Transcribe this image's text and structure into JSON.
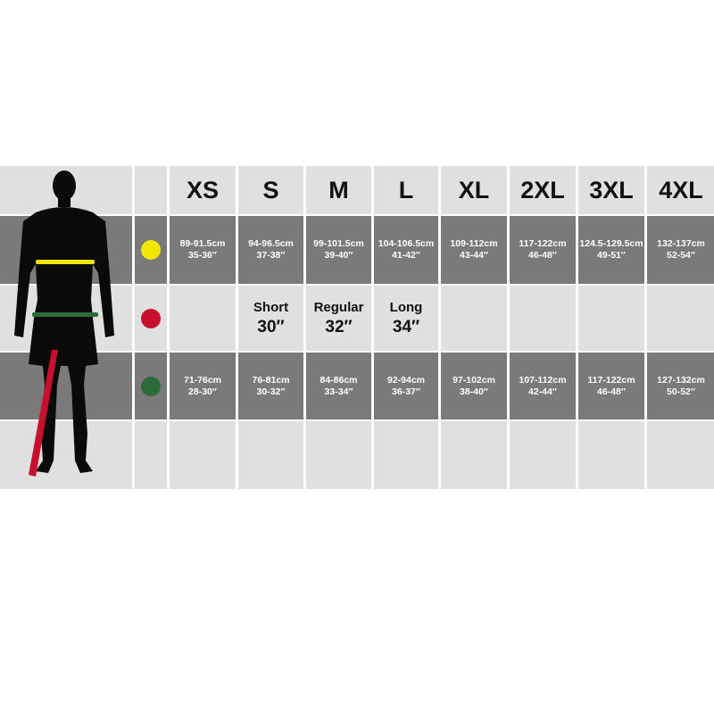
{
  "sizes": [
    "XS",
    "S",
    "M",
    "L",
    "XL",
    "2XL",
    "3XL",
    "4XL"
  ],
  "markers": {
    "chest_color": "#f2e600",
    "inside_leg_color": "#c8102e",
    "waist_color": "#2e6b3a"
  },
  "chest": [
    {
      "cm": "89-91.5cm",
      "in": "35-36″"
    },
    {
      "cm": "94-96.5cm",
      "in": "37-38″"
    },
    {
      "cm": "99-101.5cm",
      "in": "39-40″"
    },
    {
      "cm": "104-106.5cm",
      "in": "41-42″"
    },
    {
      "cm": "109-112cm",
      "in": "43-44″"
    },
    {
      "cm": "117-122cm",
      "in": "46-48″"
    },
    {
      "cm": "124.5-129.5cm",
      "in": "49-51″"
    },
    {
      "cm": "132-137cm",
      "in": "52-54″"
    }
  ],
  "inside_leg": [
    {
      "label": "Short",
      "value": "30″"
    },
    {
      "label": "Regular",
      "value": "32″"
    },
    {
      "label": "Long",
      "value": "34″"
    }
  ],
  "waist": [
    {
      "cm": "71-76cm",
      "in": "28-30″"
    },
    {
      "cm": "76-81cm",
      "in": "30-32″"
    },
    {
      "cm": "84-86cm",
      "in": "33-34″"
    },
    {
      "cm": "92-94cm",
      "in": "36-37″"
    },
    {
      "cm": "97-102cm",
      "in": "38-40″"
    },
    {
      "cm": "107-112cm",
      "in": "42-44″"
    },
    {
      "cm": "117-122cm",
      "in": "46-48″"
    },
    {
      "cm": "127-132cm",
      "in": "50-52″"
    }
  ]
}
